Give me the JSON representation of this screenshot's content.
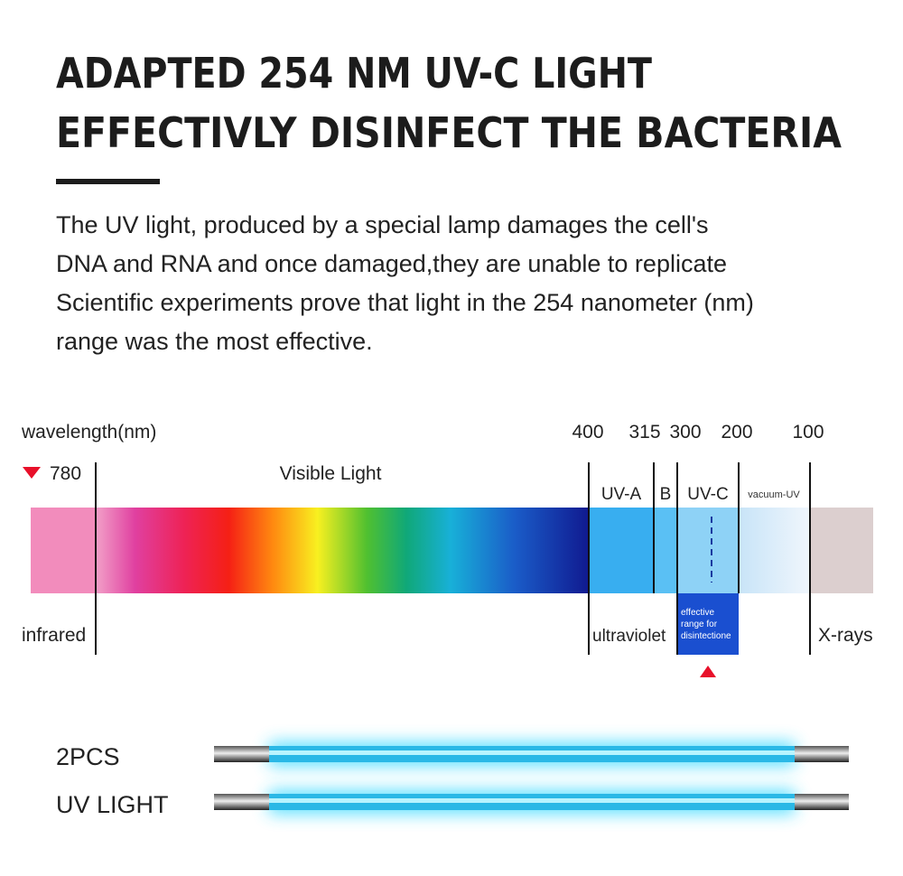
{
  "header": {
    "title_lines": [
      "ADAPTED 254 NM UV-C LIGHT",
      "EFFECTIVLY DISINFECT THE BACTERIA"
    ]
  },
  "body": {
    "lines": [
      "The UV light, produced by a special lamp damages the cell's",
      "DNA and RNA and once damaged,they are unable to replicate",
      "Scientific experiments prove that light in the 254 nanometer (nm)",
      "range was the most effective."
    ]
  },
  "spectrum": {
    "axis_label": "wavelength(nm)",
    "start": "780",
    "visible": "Visible Light",
    "wavelengths": [
      "400",
      "315",
      "300",
      "200",
      "100"
    ],
    "bands": [
      "UV-A",
      "B",
      "UV-C",
      "vacuum-UV"
    ],
    "effective_lines": [
      "effective",
      "range for",
      "disintectione"
    ],
    "regions": [
      "infrared",
      "ultraviolet",
      "X-rays"
    ]
  },
  "product": {
    "lines": [
      "2PCS",
      "UV LIGHT"
    ]
  }
}
